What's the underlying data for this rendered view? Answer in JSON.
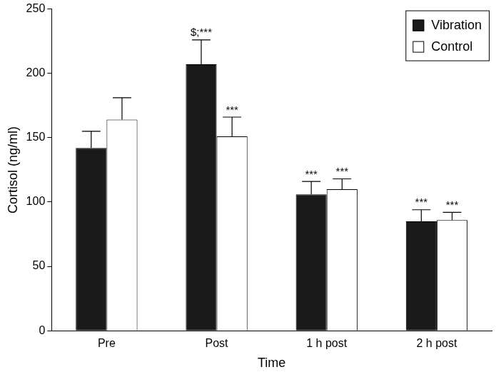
{
  "chart_data": {
    "type": "bar",
    "x_label": "Time",
    "y_label": "Cortisol (ng/ml)",
    "categories": [
      "Pre",
      "Post",
      "1 h post",
      "2 h post"
    ],
    "series": [
      {
        "name": "Vibration",
        "color": "#1a1a1a",
        "values": [
          142,
          207,
          106,
          85
        ],
        "errors": [
          13,
          19,
          10,
          9
        ],
        "annotations": [
          null,
          "$;***",
          "***",
          "***"
        ]
      },
      {
        "name": "Control",
        "color": "#ffffff",
        "values": [
          164,
          151,
          110,
          86
        ],
        "errors": [
          17,
          15,
          8,
          6
        ],
        "annotations": [
          null,
          "***",
          "***",
          "***"
        ]
      }
    ],
    "ylim": [
      0,
      250
    ],
    "yticks": [
      0,
      50,
      100,
      150,
      200,
      250
    ],
    "grid": false,
    "legend": "upper right"
  }
}
